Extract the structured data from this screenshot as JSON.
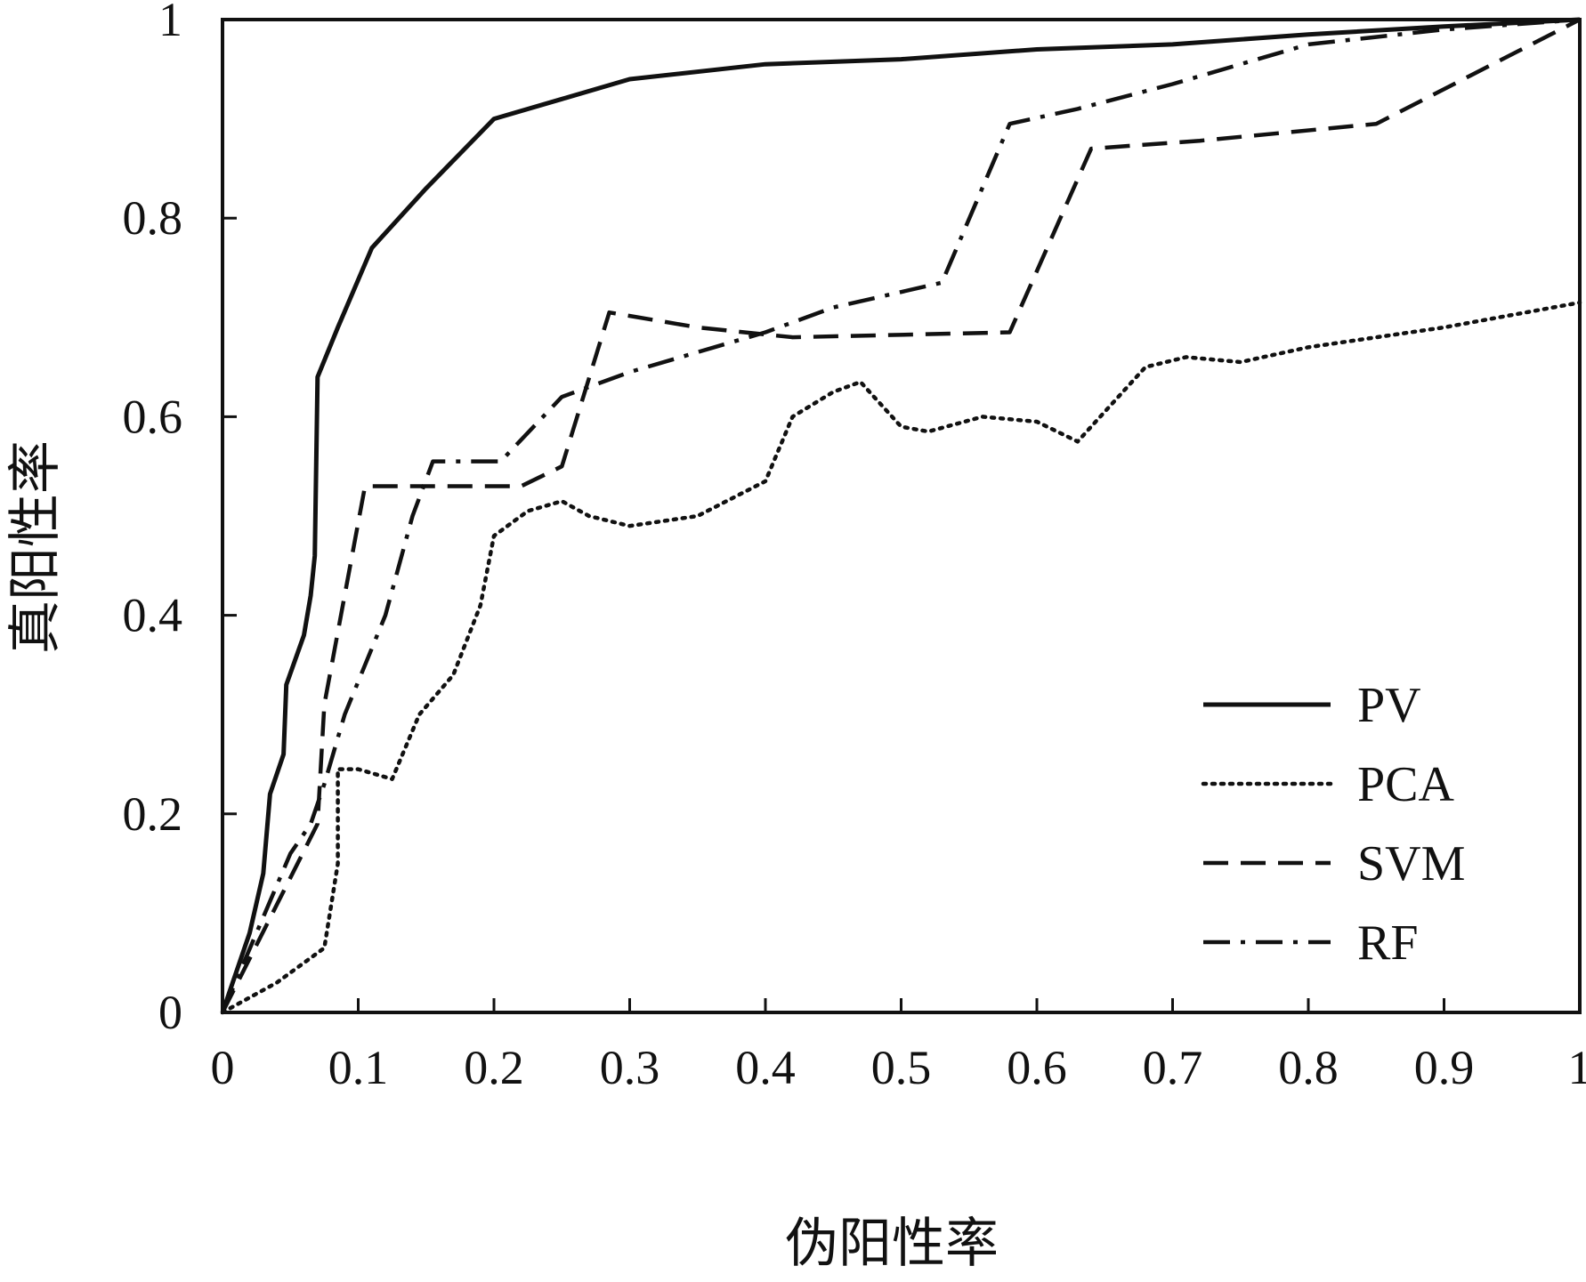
{
  "chart_data": {
    "type": "line",
    "title": "",
    "xlabel": "伪阳性率",
    "ylabel": "真阳性率",
    "xlim": [
      0,
      1
    ],
    "ylim": [
      0,
      1
    ],
    "grid": false,
    "legend_position": "bottom-right",
    "x_ticks": [
      {
        "value": 0,
        "label": "0"
      },
      {
        "value": 0.1,
        "label": "0.1"
      },
      {
        "value": 0.2,
        "label": "0.2"
      },
      {
        "value": 0.3,
        "label": "0.3"
      },
      {
        "value": 0.4,
        "label": "0.4"
      },
      {
        "value": 0.5,
        "label": "0.5"
      },
      {
        "value": 0.6,
        "label": "0.6"
      },
      {
        "value": 0.7,
        "label": "0.7"
      },
      {
        "value": 0.8,
        "label": "0.8"
      },
      {
        "value": 0.9,
        "label": "0.9"
      },
      {
        "value": 1,
        "label": "1"
      }
    ],
    "y_ticks": [
      {
        "value": 0,
        "label": "0"
      },
      {
        "value": 0.2,
        "label": "0.2"
      },
      {
        "value": 0.4,
        "label": "0.4"
      },
      {
        "value": 0.6,
        "label": "0.6"
      },
      {
        "value": 0.8,
        "label": "0.8"
      },
      {
        "value": 1,
        "label": "1"
      }
    ],
    "series": [
      {
        "name": "PV",
        "style": "solid",
        "color": "#111111",
        "points": [
          [
            0,
            0
          ],
          [
            0.02,
            0.08
          ],
          [
            0.03,
            0.14
          ],
          [
            0.035,
            0.22
          ],
          [
            0.045,
            0.26
          ],
          [
            0.047,
            0.33
          ],
          [
            0.06,
            0.38
          ],
          [
            0.065,
            0.42
          ],
          [
            0.068,
            0.46
          ],
          [
            0.07,
            0.64
          ],
          [
            0.085,
            0.69
          ],
          [
            0.11,
            0.77
          ],
          [
            0.15,
            0.83
          ],
          [
            0.2,
            0.9
          ],
          [
            0.25,
            0.92
          ],
          [
            0.3,
            0.94
          ],
          [
            0.4,
            0.955
          ],
          [
            0.5,
            0.96
          ],
          [
            0.6,
            0.97
          ],
          [
            0.7,
            0.975
          ],
          [
            0.8,
            0.985
          ],
          [
            0.9,
            0.993
          ],
          [
            1,
            1
          ]
        ]
      },
      {
        "name": "PCA",
        "style": "dotted",
        "color": "#111111",
        "points": [
          [
            0,
            0
          ],
          [
            0.04,
            0.03
          ],
          [
            0.075,
            0.065
          ],
          [
            0.085,
            0.15
          ],
          [
            0.085,
            0.245
          ],
          [
            0.1,
            0.245
          ],
          [
            0.125,
            0.235
          ],
          [
            0.145,
            0.3
          ],
          [
            0.17,
            0.34
          ],
          [
            0.19,
            0.41
          ],
          [
            0.2,
            0.48
          ],
          [
            0.225,
            0.505
          ],
          [
            0.25,
            0.515
          ],
          [
            0.27,
            0.5
          ],
          [
            0.3,
            0.49
          ],
          [
            0.35,
            0.5
          ],
          [
            0.4,
            0.535
          ],
          [
            0.42,
            0.6
          ],
          [
            0.45,
            0.625
          ],
          [
            0.47,
            0.635
          ],
          [
            0.5,
            0.59
          ],
          [
            0.52,
            0.585
          ],
          [
            0.56,
            0.6
          ],
          [
            0.6,
            0.595
          ],
          [
            0.63,
            0.575
          ],
          [
            0.68,
            0.65
          ],
          [
            0.71,
            0.66
          ],
          [
            0.75,
            0.655
          ],
          [
            0.8,
            0.67
          ],
          [
            0.9,
            0.69
          ],
          [
            1,
            0.715
          ]
        ]
      },
      {
        "name": "SVM",
        "style": "dashed",
        "color": "#111111",
        "points": [
          [
            0,
            0
          ],
          [
            0.07,
            0.19
          ],
          [
            0.075,
            0.31
          ],
          [
            0.105,
            0.53
          ],
          [
            0.22,
            0.53
          ],
          [
            0.25,
            0.55
          ],
          [
            0.285,
            0.705
          ],
          [
            0.35,
            0.69
          ],
          [
            0.42,
            0.68
          ],
          [
            0.58,
            0.685
          ],
          [
            0.64,
            0.87
          ],
          [
            0.72,
            0.878
          ],
          [
            0.85,
            0.895
          ],
          [
            1,
            1
          ]
        ]
      },
      {
        "name": "RF",
        "style": "dashdot",
        "color": "#111111",
        "points": [
          [
            0,
            0
          ],
          [
            0.05,
            0.16
          ],
          [
            0.065,
            0.19
          ],
          [
            0.075,
            0.23
          ],
          [
            0.09,
            0.3
          ],
          [
            0.12,
            0.4
          ],
          [
            0.14,
            0.5
          ],
          [
            0.155,
            0.555
          ],
          [
            0.205,
            0.555
          ],
          [
            0.25,
            0.62
          ],
          [
            0.3,
            0.645
          ],
          [
            0.4,
            0.685
          ],
          [
            0.45,
            0.71
          ],
          [
            0.53,
            0.735
          ],
          [
            0.58,
            0.895
          ],
          [
            0.63,
            0.91
          ],
          [
            0.7,
            0.935
          ],
          [
            0.8,
            0.975
          ],
          [
            0.9,
            0.99
          ],
          [
            1,
            1
          ]
        ]
      }
    ]
  }
}
